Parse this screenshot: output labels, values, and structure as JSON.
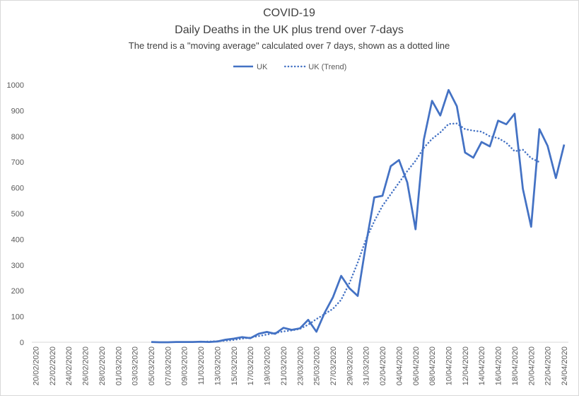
{
  "chart_data": {
    "type": "line",
    "title": [
      "COVID-19",
      "Daily Deaths in the UK plus trend over 7-days"
    ],
    "subtitle": "The trend is a \"moving average\" calculated over 7 days, shown as a dotted line",
    "categories": [
      "20/02/2020",
      null,
      "22/02/2020",
      null,
      "24/02/2020",
      null,
      "26/02/2020",
      null,
      "28/02/2020",
      null,
      "01/03/2020",
      null,
      "03/03/2020",
      null,
      "05/03/2020",
      null,
      "07/03/2020",
      null,
      "09/03/2020",
      null,
      "11/03/2020",
      null,
      "13/03/2020",
      null,
      "15/03/2020",
      null,
      "17/03/2020",
      null,
      "19/03/2020",
      null,
      "21/03/2020",
      null,
      "23/03/2020",
      null,
      "25/03/2020",
      null,
      "27/03/2020",
      null,
      "29/03/2020",
      null,
      "31/03/2020",
      null,
      "02/04/2020",
      null,
      "04/04/2020",
      null,
      "06/04/2020",
      null,
      "08/04/2020",
      null,
      "10/04/2020",
      null,
      "12/04/2020",
      null,
      "14/04/2020",
      null,
      "16/04/2020",
      null,
      "18/04/2020",
      null,
      "20/04/2020",
      null,
      "22/04/2020",
      null,
      "24/04/2020"
    ],
    "series": [
      {
        "name": "UK",
        "color": "#4472c4",
        "dotted": false,
        "values": [
          null,
          null,
          null,
          null,
          null,
          null,
          null,
          null,
          null,
          null,
          null,
          null,
          null,
          null,
          1,
          0,
          0,
          1,
          1,
          1,
          2,
          1,
          3,
          10,
          14,
          20,
          16,
          33,
          40,
          33,
          56,
          48,
          54,
          87,
          41,
          115,
          175,
          258,
          210,
          180,
          381,
          563,
          569,
          684,
          708,
          621,
          439,
          786,
          938,
          881,
          980,
          917,
          737,
          717,
          778,
          761,
          861,
          847,
          888,
          596,
          449,
          828,
          763,
          638,
          768
        ]
      },
      {
        "name": "UK (Trend)",
        "color": "#4472c4",
        "dotted": true,
        "values": [
          null,
          null,
          null,
          null,
          null,
          null,
          null,
          null,
          null,
          null,
          null,
          null,
          null,
          null,
          null,
          null,
          null,
          null,
          null,
          null,
          2,
          3,
          4,
          6,
          9,
          14,
          18,
          24,
          30,
          36,
          42,
          46,
          52,
          68,
          90,
          110,
          130,
          165,
          230,
          310,
          400,
          470,
          530,
          575,
          620,
          665,
          705,
          755,
          790,
          815,
          848,
          850,
          828,
          822,
          818,
          800,
          793,
          775,
          742,
          748,
          715,
          700,
          null,
          null,
          null
        ]
      }
    ],
    "ylim": [
      0,
      1000
    ],
    "yticks": [
      0,
      100,
      200,
      300,
      400,
      500,
      600,
      700,
      800,
      900,
      1000
    ],
    "grid": false,
    "legend": "top"
  }
}
